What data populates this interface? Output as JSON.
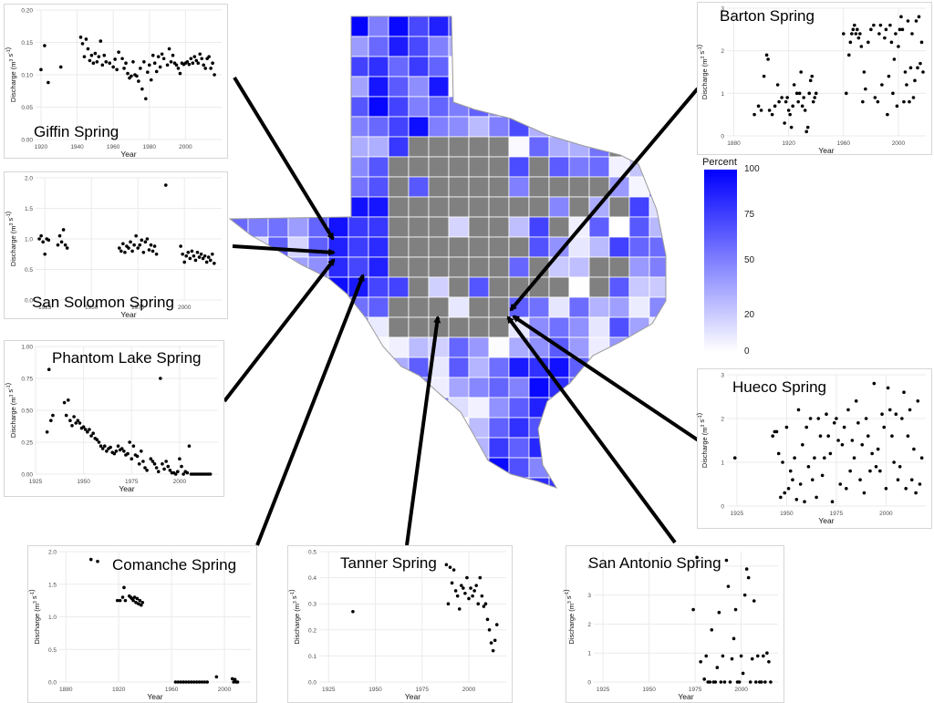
{
  "colors": {
    "scale_low": "#ffffff",
    "scale_high": "#0000ff",
    "no_data": "#808080",
    "point": "#000000",
    "grid": "#ebebeb",
    "arrow": "#000000"
  },
  "map": {
    "legend": {
      "title": "Percent",
      "breaks": [
        "100",
        "75",
        "50",
        "20",
        "0"
      ],
      "break_values": [
        100,
        75,
        50,
        20,
        0
      ]
    }
  },
  "chart_data": [
    {
      "id": "giffin",
      "type": "scatter",
      "title": "Giffin Spring",
      "xlabel": "Year",
      "ylabel_main": "Discharge (m",
      "ylabel_sup1": "3",
      "ylabel_mid": " s",
      "ylabel_sup2": "-1",
      "ylabel_end": ")",
      "xlim": [
        1917,
        2020
      ],
      "ylim": [
        0,
        0.2
      ],
      "xticks": [
        1920,
        1940,
        1960,
        1980,
        2000
      ],
      "xtick_labels": [
        "1920",
        "1940",
        "1960",
        "1980",
        "2000"
      ],
      "yticks": [
        0,
        0.05,
        0.1,
        0.15,
        0.2
      ],
      "ytick_labels": [
        "0.00",
        "0.05",
        "0.10",
        "0.15",
        "0.20"
      ],
      "x": [
        1920,
        1922,
        1924,
        1931,
        1942,
        1943,
        1944,
        1945,
        1946,
        1947,
        1948,
        1949,
        1950,
        1951,
        1952,
        1953,
        1954,
        1955,
        1956,
        1958,
        1960,
        1961,
        1962,
        1963,
        1965,
        1966,
        1967,
        1968,
        1969,
        1970,
        1971,
        1972,
        1973,
        1974,
        1975,
        1976,
        1977,
        1978,
        1979,
        1980,
        1981,
        1982,
        1983,
        1984,
        1985,
        1986,
        1987,
        1988,
        1990,
        1991,
        1992,
        1993,
        1994,
        1995,
        1996,
        1997,
        1998,
        1999,
        2000,
        2001,
        2002,
        2003,
        2004,
        2005,
        2006,
        2007,
        2008,
        2009,
        2010,
        2011,
        2012,
        2013,
        2014,
        2015,
        2016
      ],
      "y": [
        0.108,
        0.145,
        0.088,
        0.112,
        0.158,
        0.148,
        0.128,
        0.155,
        0.14,
        0.122,
        0.13,
        0.118,
        0.133,
        0.12,
        0.128,
        0.152,
        0.115,
        0.13,
        0.12,
        0.118,
        0.112,
        0.124,
        0.108,
        0.135,
        0.125,
        0.11,
        0.118,
        0.102,
        0.095,
        0.098,
        0.12,
        0.1,
        0.098,
        0.09,
        0.11,
        0.078,
        0.12,
        0.063,
        0.104,
        0.115,
        0.092,
        0.13,
        0.118,
        0.105,
        0.128,
        0.112,
        0.132,
        0.125,
        0.115,
        0.14,
        0.12,
        0.13,
        0.118,
        0.115,
        0.11,
        0.102,
        0.118,
        0.116,
        0.118,
        0.12,
        0.116,
        0.125,
        0.118,
        0.128,
        0.122,
        0.118,
        0.132,
        0.125,
        0.115,
        0.11,
        0.125,
        0.128,
        0.11,
        0.118,
        0.1
      ]
    },
    {
      "id": "san-solomon",
      "type": "scatter",
      "title": "San Solomon Spring",
      "xlabel": "Year",
      "ylabel_main": "Discharge (m",
      "ylabel_sup1": "3",
      "ylabel_mid": " s",
      "ylabel_sup2": "-1",
      "ylabel_end": ")",
      "xlim": [
        1920,
        2020
      ],
      "ylim": [
        0,
        2
      ],
      "xticks": [
        1925,
        1950,
        1975,
        2000
      ],
      "xtick_labels": [
        "1925",
        "1950",
        "1975",
        "2000"
      ],
      "yticks": [
        0,
        0.5,
        1,
        1.5,
        2
      ],
      "ytick_labels": [
        "0.0",
        "0.5",
        "1.0",
        "1.5",
        "2.0"
      ],
      "x": [
        1922,
        1923,
        1924,
        1925,
        1926,
        1927,
        1932,
        1933,
        1934,
        1935,
        1936,
        1937,
        1965,
        1966,
        1967,
        1968,
        1969,
        1970,
        1971,
        1972,
        1973,
        1974,
        1975,
        1976,
        1977,
        1978,
        1979,
        1980,
        1981,
        1982,
        1983,
        1984,
        1985,
        1990,
        1998,
        1999,
        2000,
        2001,
        2002,
        2003,
        2004,
        2005,
        2006,
        2007,
        2008,
        2009,
        2010,
        2011,
        2012,
        2013,
        2014,
        2015,
        2016
      ],
      "y": [
        1.0,
        1.05,
        0.95,
        0.75,
        1.0,
        0.98,
        0.9,
        1.05,
        0.95,
        1.15,
        0.9,
        0.85,
        0.85,
        0.8,
        0.92,
        0.78,
        0.88,
        0.85,
        0.95,
        0.8,
        0.9,
        1.05,
        0.85,
        0.9,
        0.98,
        0.78,
        0.95,
        1.0,
        0.82,
        0.9,
        0.8,
        0.88,
        0.75,
        1.88,
        0.88,
        0.75,
        0.62,
        0.72,
        0.78,
        0.68,
        0.8,
        0.72,
        0.65,
        0.78,
        0.7,
        0.75,
        0.68,
        0.72,
        0.62,
        0.7,
        0.65,
        0.75,
        0.6
      ]
    },
    {
      "id": "phantom-lake",
      "type": "scatter",
      "title": "Phantom Lake Spring",
      "xlabel": "Year",
      "ylabel_main": "Discharge (m",
      "ylabel_sup1": "3",
      "ylabel_mid": " s",
      "ylabel_sup2": "-1",
      "ylabel_end": ")",
      "xlim": [
        1925,
        2020
      ],
      "ylim": [
        0,
        1
      ],
      "xticks": [
        1925,
        1950,
        1975,
        2000
      ],
      "xtick_labels": [
        "1925",
        "1950",
        "1975",
        "2000"
      ],
      "yticks": [
        0,
        0.25,
        0.5,
        0.75,
        1
      ],
      "ytick_labels": [
        "0.00",
        "0.25",
        "0.50",
        "0.75",
        "1.00"
      ],
      "x": [
        1931,
        1932,
        1933,
        1934,
        1940,
        1941,
        1942,
        1943,
        1944,
        1945,
        1946,
        1947,
        1948,
        1949,
        1950,
        1951,
        1952,
        1953,
        1954,
        1955,
        1956,
        1957,
        1958,
        1959,
        1960,
        1961,
        1962,
        1963,
        1964,
        1965,
        1966,
        1967,
        1968,
        1969,
        1970,
        1971,
        1972,
        1973,
        1974,
        1975,
        1976,
        1977,
        1978,
        1979,
        1980,
        1981,
        1982,
        1983,
        1985,
        1986,
        1987,
        1988,
        1989,
        1990,
        1991,
        1992,
        1993,
        1994,
        1995,
        1996,
        1997,
        1998,
        1999,
        2000,
        2001,
        2002,
        2003,
        2004,
        2005,
        2006,
        2007,
        2008,
        2009,
        2010,
        2011,
        2012,
        2013,
        2014,
        2015,
        2016
      ],
      "y": [
        0.33,
        0.82,
        0.42,
        0.46,
        0.56,
        0.46,
        0.58,
        0.42,
        0.38,
        0.45,
        0.4,
        0.42,
        0.4,
        0.36,
        0.37,
        0.35,
        0.33,
        0.35,
        0.3,
        0.32,
        0.28,
        0.27,
        0.25,
        0.22,
        0.2,
        0.22,
        0.18,
        0.2,
        0.21,
        0.17,
        0.16,
        0.18,
        0.22,
        0.19,
        0.2,
        0.18,
        0.15,
        0.16,
        0.25,
        0.12,
        0.22,
        0.15,
        0.14,
        0.08,
        0.18,
        0.1,
        0.05,
        0.03,
        0.12,
        0.1,
        0.08,
        0.05,
        0.02,
        0.75,
        0.08,
        0.04,
        0.1,
        0.06,
        0.03,
        0.01,
        0.01,
        0.0,
        0.02,
        0.12,
        0.06,
        0.0,
        0.02,
        0.01,
        0.22,
        0.0,
        0.0,
        0.0,
        0.0,
        0.0,
        0.0,
        0.0,
        0.0,
        0.0,
        0.0,
        0.0
      ]
    },
    {
      "id": "comanche",
      "type": "scatter",
      "title": "Comanche Spring",
      "xlabel": "Year",
      "ylabel_main": "Discharge (m",
      "ylabel_sup1": "3",
      "ylabel_mid": " s",
      "ylabel_sup2": "-1",
      "ylabel_end": ")",
      "xlim": [
        1875,
        2020
      ],
      "ylim": [
        0,
        2
      ],
      "xticks": [
        1880,
        1920,
        1960,
        2000
      ],
      "xtick_labels": [
        "1880",
        "1920",
        "1960",
        "2000"
      ],
      "yticks": [
        0,
        0.5,
        1,
        1.5,
        2
      ],
      "ytick_labels": [
        "0.0",
        "0.5",
        "1.0",
        "1.5",
        "2.0"
      ],
      "x": [
        1899,
        1904,
        1919,
        1921,
        1923,
        1924,
        1925,
        1928,
        1929,
        1930,
        1931,
        1932,
        1933,
        1934,
        1935,
        1936,
        1937,
        1938,
        1963,
        1965,
        1967,
        1969,
        1971,
        1973,
        1975,
        1977,
        1979,
        1981,
        1983,
        1985,
        1987,
        1994,
        2006,
        2007,
        2008,
        2009,
        2010
      ],
      "y": [
        1.88,
        1.85,
        1.25,
        1.25,
        1.3,
        1.45,
        1.25,
        1.32,
        1.3,
        1.28,
        1.25,
        1.3,
        1.22,
        1.28,
        1.2,
        1.25,
        1.18,
        1.22,
        0.0,
        0.0,
        0.0,
        0.0,
        0.0,
        0.0,
        0.0,
        0.0,
        0.0,
        0.0,
        0.0,
        0.0,
        0.0,
        0.08,
        0.05,
        0.0,
        0.04,
        0.0,
        0.0
      ]
    },
    {
      "id": "tanner",
      "type": "scatter",
      "title": "Tanner Spring",
      "xlabel": "Year",
      "ylabel_main": "Discharge (m",
      "ylabel_sup1": "3",
      "ylabel_mid": " s",
      "ylabel_sup2": "-1",
      "ylabel_end": ")",
      "xlim": [
        1920,
        2020
      ],
      "ylim": [
        0,
        0.5
      ],
      "xticks": [
        1925,
        1950,
        1975,
        2000
      ],
      "xtick_labels": [
        "1925",
        "1950",
        "1975",
        "2000"
      ],
      "yticks": [
        0,
        0.1,
        0.2,
        0.3,
        0.4,
        0.5
      ],
      "ytick_labels": [
        "0.0",
        "0.1",
        "0.2",
        "0.3",
        "0.4",
        "0.5"
      ],
      "x": [
        1938,
        1988,
        1989,
        1990,
        1991,
        1992,
        1993,
        1994,
        1995,
        1996,
        1997,
        1998,
        1999,
        2000,
        2001,
        2002,
        2003,
        2004,
        2005,
        2006,
        2007,
        2008,
        2009,
        2010,
        2011,
        2012,
        2013,
        2014,
        2015
      ],
      "y": [
        0.27,
        0.45,
        0.3,
        0.44,
        0.38,
        0.43,
        0.35,
        0.33,
        0.28,
        0.37,
        0.36,
        0.34,
        0.4,
        0.32,
        0.36,
        0.33,
        0.35,
        0.37,
        0.3,
        0.4,
        0.33,
        0.29,
        0.3,
        0.24,
        0.2,
        0.15,
        0.12,
        0.16,
        0.22
      ]
    },
    {
      "id": "san-antonio",
      "type": "scatter",
      "title": "San Antonio Spring",
      "xlabel": "Year",
      "ylabel_main": "Discharge (m",
      "ylabel_sup1": "3",
      "ylabel_mid": " s",
      "ylabel_sup2": "-1",
      "ylabel_end": ")",
      "xlim": [
        1920,
        2020
      ],
      "ylim": [
        0,
        4.5
      ],
      "xticks": [
        1925,
        1950,
        1975,
        2000
      ],
      "xtick_labels": [
        "1925",
        "1950",
        "1975",
        "2000"
      ],
      "yticks": [
        0,
        1,
        2,
        3,
        4
      ],
      "ytick_labels": [
        "0",
        "1",
        "2",
        "3",
        "4"
      ],
      "x": [
        1974,
        1976,
        1978,
        1980,
        1981,
        1982,
        1983,
        1984,
        1985,
        1986,
        1987,
        1988,
        1989,
        1990,
        1991,
        1992,
        1993,
        1994,
        1995,
        1996,
        1997,
        1998,
        1999,
        2000,
        2001,
        2002,
        2003,
        2004,
        2005,
        2006,
        2007,
        2008,
        2009,
        2010,
        2011,
        2012,
        2013,
        2014,
        2015,
        2016
      ],
      "y": [
        2.5,
        4.3,
        0.7,
        0.1,
        0.9,
        0.0,
        0.0,
        1.8,
        0.0,
        0.0,
        0.5,
        2.4,
        0.0,
        0.9,
        0.0,
        4.2,
        3.3,
        0.0,
        0.8,
        1.5,
        2.5,
        0.0,
        0.0,
        0.9,
        0.3,
        3.0,
        3.9,
        3.6,
        0.0,
        0.8,
        2.8,
        0.0,
        0.9,
        0.0,
        0.0,
        0.9,
        0.0,
        1.0,
        0.7,
        0.0
      ]
    },
    {
      "id": "barton",
      "type": "scatter",
      "title": "Barton Spring",
      "xlabel": "Year",
      "ylabel_main": "Discharge (m",
      "ylabel_sup1": "3",
      "ylabel_mid": " s",
      "ylabel_sup2": "-1",
      "ylabel_end": ")",
      "xlim": [
        1875,
        2020
      ],
      "ylim": [
        0,
        3
      ],
      "xticks": [
        1880,
        1920,
        1960,
        2000
      ],
      "xtick_labels": [
        "1880",
        "1920",
        "1960",
        "2000"
      ],
      "yticks": [
        0,
        1,
        2,
        3
      ],
      "ytick_labels": [
        "0",
        "1",
        "2",
        "3"
      ],
      "x": [
        1895,
        1898,
        1900,
        1902,
        1904,
        1905,
        1906,
        1908,
        1910,
        1912,
        1913,
        1915,
        1917,
        1918,
        1919,
        1920,
        1921,
        1922,
        1923,
        1924,
        1926,
        1927,
        1928,
        1929,
        1930,
        1931,
        1932,
        1933,
        1934,
        1935,
        1936,
        1937,
        1938,
        1939,
        1940,
        1960,
        1962,
        1964,
        1965,
        1966,
        1967,
        1968,
        1969,
        1970,
        1971,
        1972,
        1973,
        1974,
        1975,
        1976,
        1978,
        1980,
        1982,
        1983,
        1985,
        1986,
        1987,
        1988,
        1990,
        1991,
        1992,
        1993,
        1994,
        1995,
        1996,
        1997,
        1998,
        1999,
        2000,
        2001,
        2002,
        2003,
        2004,
        2005,
        2006,
        2007,
        2008,
        2009,
        2010,
        2011,
        2012,
        2013,
        2014,
        2015,
        2016,
        2017,
        2018
      ],
      "y": [
        0.5,
        0.7,
        0.6,
        1.4,
        1.9,
        1.8,
        0.6,
        0.5,
        0.7,
        1.2,
        0.8,
        0.9,
        0.3,
        0.8,
        0.9,
        0.6,
        0.5,
        0.2,
        0.7,
        1.2,
        1.0,
        0.8,
        1.0,
        1.5,
        0.7,
        0.9,
        0.6,
        0.1,
        0.2,
        1.0,
        1.3,
        1.4,
        0.8,
        0.9,
        1.0,
        2.4,
        1.0,
        1.9,
        2.2,
        2.4,
        2.5,
        2.6,
        2.4,
        2.5,
        2.3,
        2.4,
        2.1,
        0.8,
        1.5,
        1.1,
        2.2,
        2.5,
        2.6,
        0.9,
        0.8,
        2.4,
        2.6,
        1.2,
        2.3,
        2.5,
        0.5,
        1.4,
        2.6,
        2.2,
        1.0,
        1.8,
        2.4,
        0.7,
        2.1,
        2.5,
        2.8,
        2.5,
        0.8,
        1.5,
        1.2,
        2.7,
        0.8,
        1.6,
        2.4,
        0.9,
        1.3,
        2.7,
        1.6,
        2.8,
        1.7,
        2.2,
        1.5
      ]
    },
    {
      "id": "hueco",
      "type": "scatter",
      "title": "Hueco Spring",
      "xlabel": "Year",
      "ylabel_main": "Discharge (m",
      "ylabel_sup1": "3",
      "ylabel_mid": " s",
      "ylabel_sup2": "-1",
      "ylabel_end": ")",
      "xlim": [
        1920,
        2020
      ],
      "ylim": [
        0,
        3
      ],
      "xticks": [
        1925,
        1950,
        1975,
        2000
      ],
      "xtick_labels": [
        "1925",
        "1950",
        "1975",
        "2000"
      ],
      "yticks": [
        0,
        1,
        2,
        3
      ],
      "ytick_labels": [
        "0",
        "1",
        "2",
        "3"
      ],
      "x": [
        1924,
        1943,
        1944,
        1945,
        1946,
        1947,
        1948,
        1949,
        1950,
        1951,
        1952,
        1953,
        1954,
        1955,
        1956,
        1957,
        1958,
        1959,
        1960,
        1961,
        1962,
        1963,
        1964,
        1965,
        1966,
        1967,
        1968,
        1969,
        1970,
        1971,
        1972,
        1973,
        1974,
        1975,
        1976,
        1977,
        1978,
        1979,
        1980,
        1981,
        1982,
        1983,
        1984,
        1985,
        1986,
        1987,
        1988,
        1989,
        1990,
        1991,
        1992,
        1993,
        1994,
        1995,
        1996,
        1997,
        1998,
        1999,
        2000,
        2001,
        2002,
        2003,
        2004,
        2005,
        2006,
        2007,
        2008,
        2009,
        2010,
        2011,
        2012,
        2013,
        2014,
        2015,
        2016,
        2017,
        2018
      ],
      "y": [
        1.1,
        1.6,
        1.7,
        1.7,
        1.2,
        0.2,
        1.0,
        0.3,
        1.8,
        0.4,
        0.8,
        0.6,
        1.1,
        0.15,
        2.2,
        0.5,
        1.4,
        0.1,
        1.8,
        0.9,
        2.0,
        0.6,
        1.1,
        0.2,
        2.0,
        1.6,
        0.7,
        1.1,
        2.1,
        1.6,
        1.2,
        0.1,
        1.9,
        2.0,
        1.5,
        0.5,
        1.4,
        1.8,
        0.4,
        2.2,
        0.8,
        1.5,
        1.1,
        2.4,
        1.9,
        0.6,
        1.4,
        0.3,
        2.0,
        1.6,
        0.8,
        1.2,
        2.8,
        0.9,
        1.3,
        0.8,
        2.1,
        1.8,
        0.4,
        2.7,
        2.2,
        1.6,
        1.0,
        2.1,
        0.6,
        0.9,
        2.0,
        2.6,
        0.4,
        1.6,
        2.2,
        0.6,
        1.3,
        0.3,
        2.4,
        0.5,
        1.1
      ]
    }
  ]
}
